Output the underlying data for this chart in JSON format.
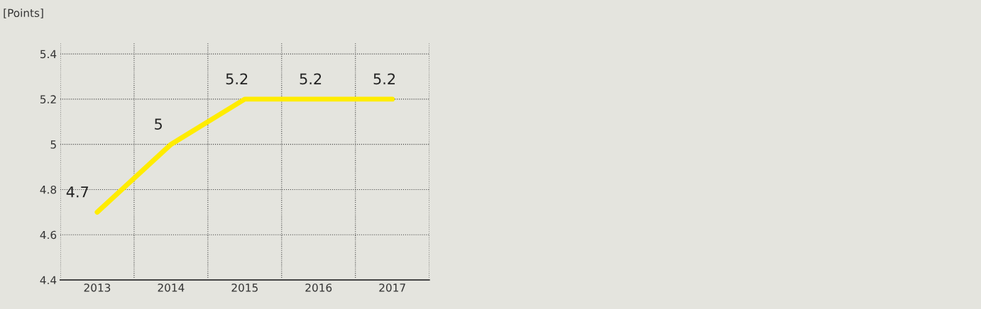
{
  "chart_data": {
    "type": "line",
    "ylabel": "[Points]",
    "categories": [
      "2013",
      "2014",
      "2015",
      "2016",
      "2017"
    ],
    "series": [
      {
        "color": "#ffec00",
        "values": [
          4.7,
          5,
          5.2,
          5.2,
          5.2
        ]
      }
    ],
    "ylim": [
      4.4,
      5.45
    ],
    "yticks": [
      4.4,
      4.6,
      4.8,
      5,
      5.2,
      5.4
    ],
    "grid": true,
    "data_labels": true,
    "legend": false,
    "marker": "none",
    "line_style": "solid"
  }
}
